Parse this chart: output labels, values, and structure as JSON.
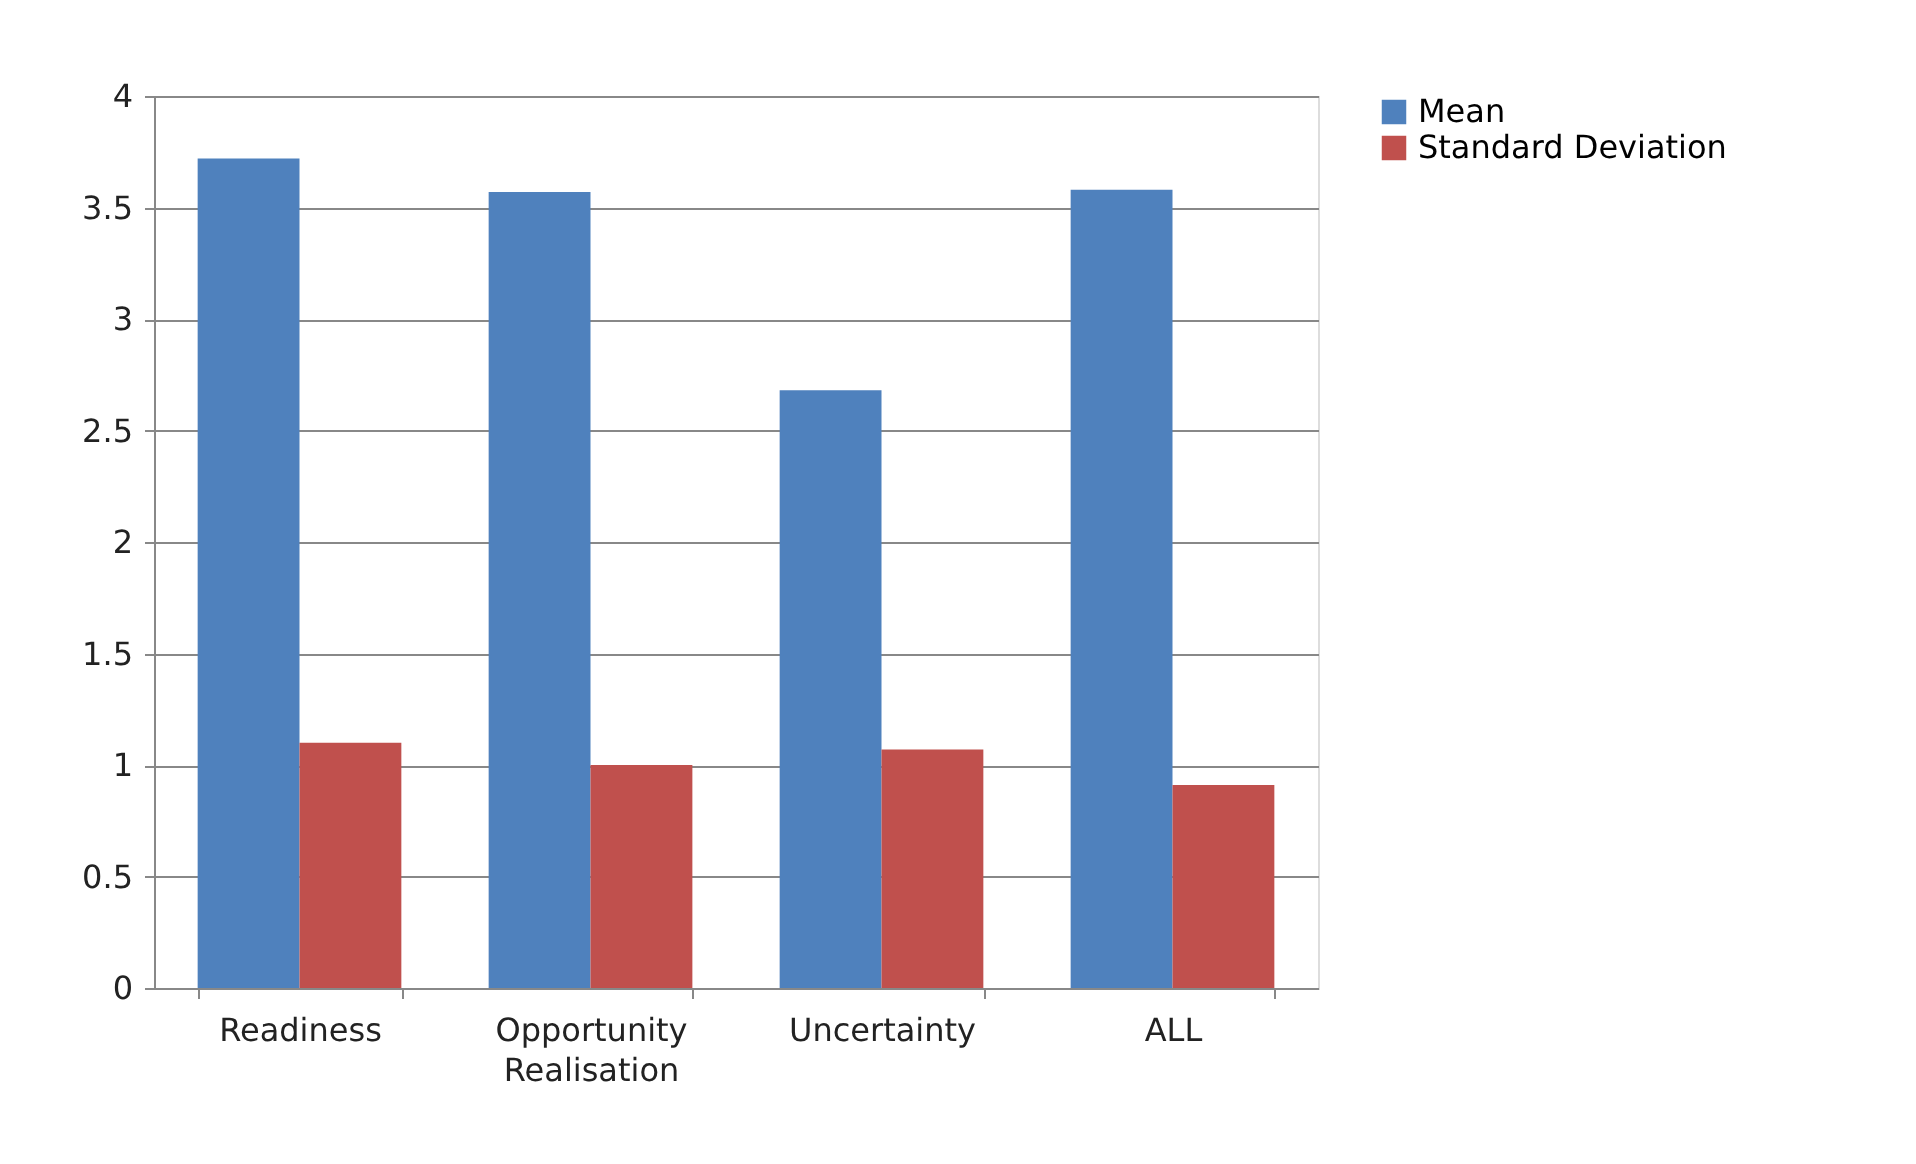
{
  "chart_data": {
    "type": "bar",
    "categories": [
      "Readiness",
      "Opportunity Realisation",
      "Uncertainty",
      "ALL"
    ],
    "series": [
      {
        "name": "Mean",
        "color": "#4f81bd",
        "values": [
          3.72,
          3.57,
          2.68,
          3.58
        ]
      },
      {
        "name": "Standard Deviation",
        "color": "#c0504d",
        "values": [
          1.1,
          1.0,
          1.07,
          0.91
        ]
      }
    ],
    "ylim": [
      0,
      4
    ],
    "yticks": [
      0,
      0.5,
      1,
      1.5,
      2,
      2.5,
      3,
      3.5,
      4
    ],
    "grid": "y",
    "legend": "right"
  }
}
